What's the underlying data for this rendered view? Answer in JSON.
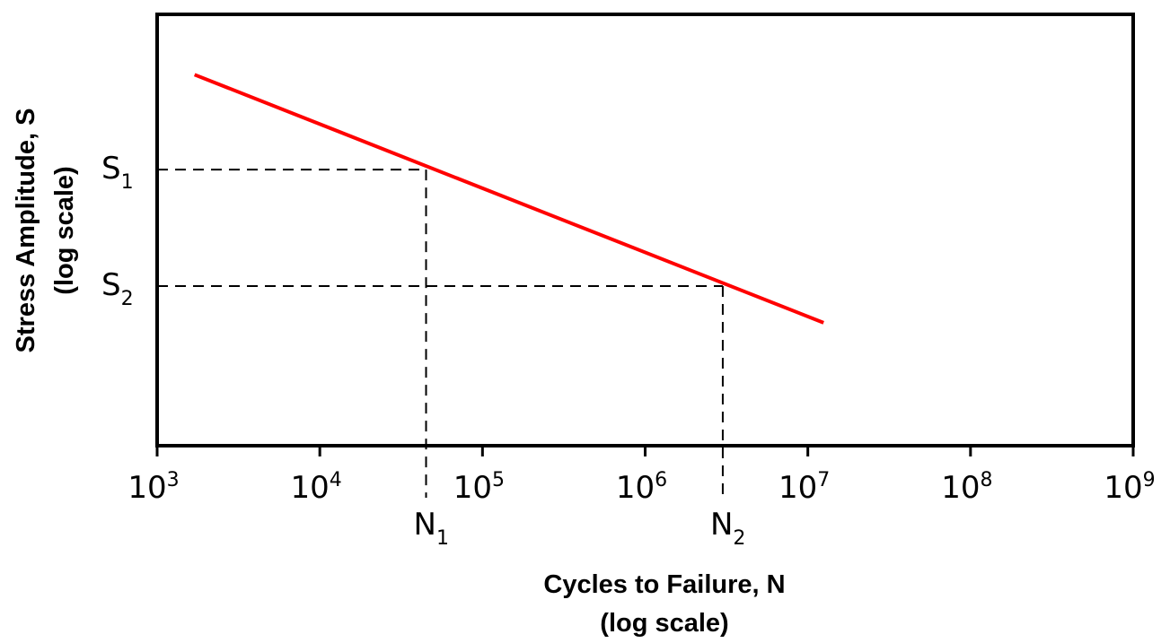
{
  "chart_data": {
    "type": "line",
    "x_scale": "log",
    "y_scale": "log",
    "xlim": [
      1000,
      1000000000
    ],
    "x_ticks": [
      {
        "base": "10",
        "exp": "3",
        "value": 1000
      },
      {
        "base": "10",
        "exp": "4",
        "value": 10000
      },
      {
        "base": "10",
        "exp": "5",
        "value": 100000
      },
      {
        "base": "10",
        "exp": "6",
        "value": 1000000
      },
      {
        "base": "10",
        "exp": "7",
        "value": 10000000
      },
      {
        "base": "10",
        "exp": "8",
        "value": 100000000
      },
      {
        "base": "10",
        "exp": "9",
        "value": 1000000000
      }
    ],
    "xlabel": "Cycles to Failure, N",
    "xlabel_sub": "(log scale)",
    "ylabel": "Stress Amplitude, S",
    "ylabel_sub": "(log scale)",
    "y_ticks_shown": false,
    "grid": false,
    "legend": "none",
    "series": [
      {
        "color": "#ff0000",
        "x": [
          1700,
          12500000
        ],
        "y_level": [
          0.86,
          0.285
        ]
      }
    ],
    "reference_points": [
      {
        "s_label": "S",
        "s_sub": "1",
        "n_label": "N",
        "n_sub": "1",
        "x": 45000,
        "y_level": 0.64
      },
      {
        "s_label": "S",
        "s_sub": "2",
        "n_label": "N",
        "n_sub": "2",
        "x": 3000000,
        "y_level": 0.37
      }
    ],
    "colors": {
      "curve": "#ff0000",
      "frame": "#000000",
      "guides": "#000000"
    }
  }
}
